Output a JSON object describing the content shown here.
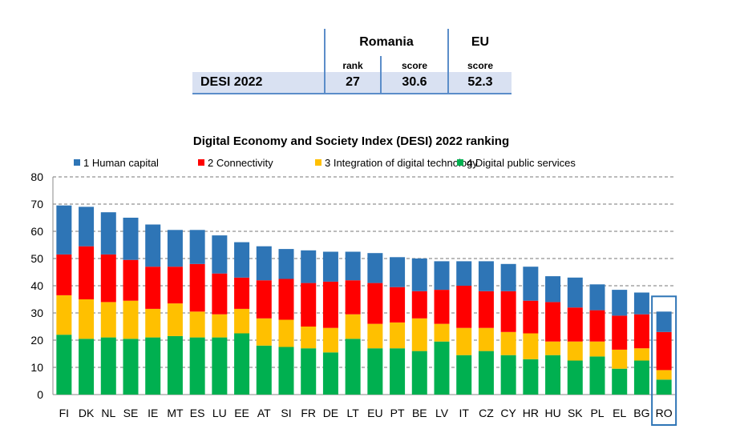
{
  "summary": {
    "col_headers": {
      "romania": "Romania",
      "eu": "EU"
    },
    "sub_headers": {
      "rank": "rank",
      "score": "score",
      "eu_score": "score"
    },
    "row": {
      "label": "DESI 2022",
      "rank": "27",
      "score": "30.6",
      "eu_score": "52.3"
    }
  },
  "chart_data": {
    "type": "bar",
    "stacked": true,
    "title": "Digital Economy and Society Index (DESI) 2022 ranking",
    "xlabel": "",
    "ylabel": "",
    "ylim": [
      0,
      80
    ],
    "yticks": [
      0,
      10,
      20,
      30,
      40,
      50,
      60,
      70,
      80
    ],
    "grid": true,
    "legend_position": "top",
    "highlight_category": "RO",
    "categories": [
      "FI",
      "DK",
      "NL",
      "SE",
      "IE",
      "MT",
      "ES",
      "LU",
      "EE",
      "AT",
      "SI",
      "FR",
      "DE",
      "LT",
      "EU",
      "PT",
      "BE",
      "LV",
      "IT",
      "CZ",
      "CY",
      "HR",
      "HU",
      "SK",
      "PL",
      "EL",
      "BG",
      "RO"
    ],
    "series": [
      {
        "name": "4 Digital public services",
        "color": "#00b050",
        "values": [
          22,
          20.5,
          21,
          20.5,
          21,
          21.5,
          21,
          21,
          22.5,
          18,
          17.5,
          17,
          15.5,
          20.5,
          17,
          17,
          16,
          19.5,
          14.5,
          16,
          14.5,
          13,
          14.5,
          12.5,
          14,
          9.5,
          12.5,
          5.5
        ]
      },
      {
        "name": "3 Integration of digital technology",
        "color": "#ffc000",
        "values": [
          14.5,
          14.5,
          13,
          14,
          10.5,
          12,
          9.5,
          8.5,
          9,
          10,
          10,
          8,
          9,
          9,
          9,
          9.5,
          12,
          6.5,
          10,
          8.5,
          8.5,
          9.5,
          5,
          7,
          5.5,
          7,
          4.5,
          3.5
        ]
      },
      {
        "name": "2 Connectivity",
        "color": "#ff0000",
        "values": [
          15,
          19.5,
          17.5,
          15,
          15.5,
          13.5,
          17.5,
          15,
          11.5,
          14,
          15,
          16,
          17,
          12.5,
          15,
          13,
          10,
          12.5,
          15.5,
          13.5,
          15,
          12,
          14.5,
          12.5,
          11.5,
          12.5,
          12.5,
          14
        ]
      },
      {
        "name": "1 Human capital",
        "color": "#2e75b6",
        "values": [
          18,
          14.5,
          15.5,
          15.5,
          15.5,
          13.5,
          12.5,
          14,
          13,
          12.5,
          11,
          12,
          11,
          10.5,
          11,
          11,
          12,
          10.5,
          9,
          11,
          10,
          12.5,
          9.5,
          11,
          9.5,
          9.5,
          8,
          7.5
        ]
      }
    ]
  }
}
